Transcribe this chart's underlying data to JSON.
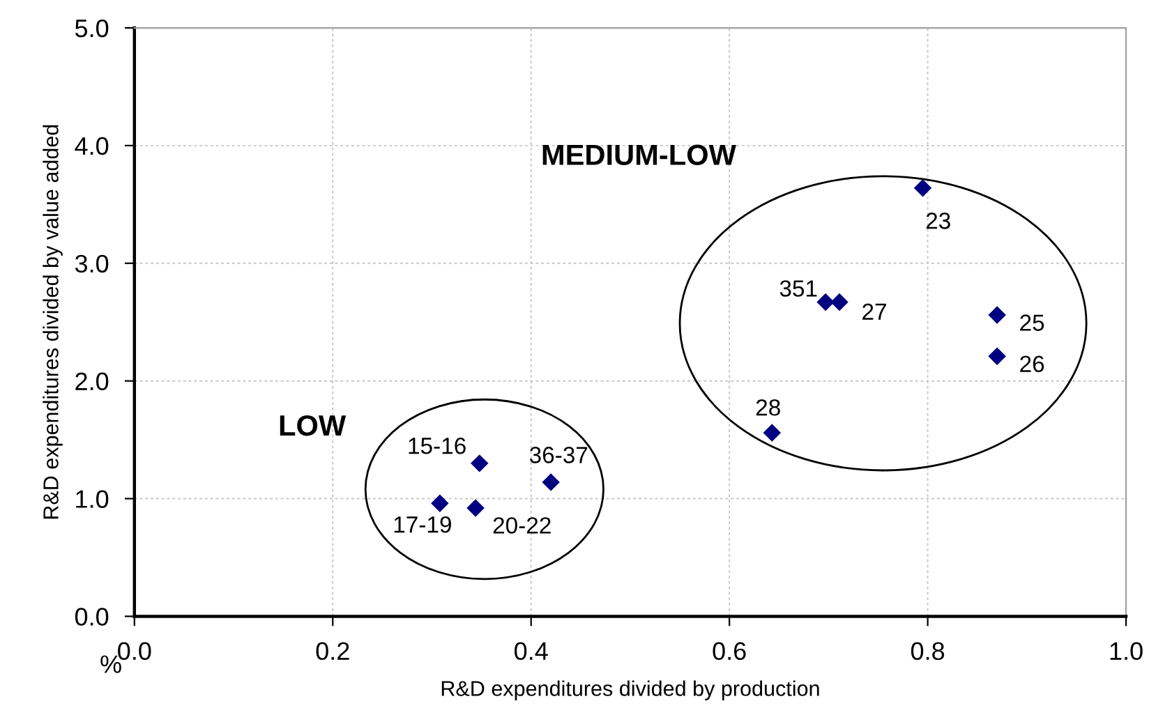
{
  "chart_data": {
    "type": "scatter",
    "xlabel": "R&D expenditures divided by production",
    "ylabel": "R&D expenditures divided by value added",
    "series": [
      {
        "color": "#000080",
        "x": [
          0.795,
          0.697,
          0.711,
          0.87,
          0.87,
          0.643,
          0.348,
          0.42,
          0.308,
          0.344
        ],
        "values": [
          3.64,
          2.67,
          2.67,
          2.56,
          2.21,
          1.56,
          1.3,
          1.14,
          0.96,
          0.92
        ]
      }
    ],
    "marker": "diamond",
    "grid": true,
    "xlim": [
      0,
      1
    ],
    "ylim": [
      0,
      5
    ],
    "xticks": [
      {
        "value": 0,
        "label": "0.0"
      },
      {
        "value": 0.2,
        "label": "0.2"
      },
      {
        "value": 0.4,
        "label": "0.4"
      },
      {
        "value": 0.6,
        "label": "0.6"
      },
      {
        "value": 0.8,
        "label": "0.8"
      },
      {
        "value": 1,
        "label": "1.0"
      }
    ],
    "yticks": [
      {
        "value": 0,
        "label": "0.0"
      },
      {
        "value": 1,
        "label": "1.0"
      },
      {
        "value": 2,
        "label": "2.0"
      },
      {
        "value": 3,
        "label": "3.0"
      },
      {
        "value": 4,
        "label": "4.0"
      },
      {
        "value": 5,
        "label": "5.0"
      }
    ],
    "annotations": [
      {
        "text": "23",
        "x": 0.795,
        "y": 3.64
      },
      {
        "text": "351",
        "x": 0.697,
        "y": 2.67
      },
      {
        "text": "27",
        "x": 0.711,
        "y": 2.67
      },
      {
        "text": "25",
        "x": 0.87,
        "y": 2.56
      },
      {
        "text": "26",
        "x": 0.87,
        "y": 2.21
      },
      {
        "text": "28",
        "x": 0.643,
        "y": 1.56
      },
      {
        "text": "15-16",
        "x": 0.348,
        "y": 1.3
      },
      {
        "text": "36-37",
        "x": 0.42,
        "y": 1.14
      },
      {
        "text": "17-19",
        "x": 0.308,
        "y": 0.96
      },
      {
        "text": "20-22",
        "x": 0.344,
        "y": 0.92
      },
      "MEDIUM-LOW",
      "LOW",
      "%"
    ]
  }
}
